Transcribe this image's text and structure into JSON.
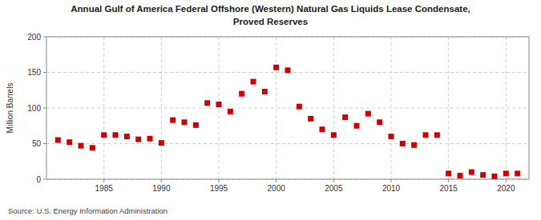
{
  "chart_data": {
    "type": "scatter",
    "title": "Annual Gulf of America Federal Offshore (Western) Natural Gas Liquids Lease Condensate,",
    "subtitle": "Proved Reserves",
    "y_label": "Million Barrels",
    "annotations": [
      "Source: U.S. Energy Information Administration"
    ],
    "x": [
      1981,
      1982,
      1983,
      1984,
      1985,
      1986,
      1987,
      1988,
      1989,
      1990,
      1991,
      1992,
      1993,
      1994,
      1995,
      1996,
      1997,
      1998,
      1999,
      2000,
      2001,
      2002,
      2003,
      2004,
      2005,
      2006,
      2007,
      2008,
      2009,
      2010,
      2011,
      2012,
      2013,
      2014,
      2015,
      2016,
      2017,
      2018,
      2019,
      2020,
      2021
    ],
    "values": [
      55,
      52,
      47,
      44,
      62,
      62,
      60,
      56,
      57,
      51,
      83,
      80,
      76,
      107,
      105,
      95,
      120,
      137,
      123,
      157,
      153,
      102,
      85,
      70,
      62,
      87,
      75,
      92,
      80,
      60,
      50,
      48,
      62,
      62,
      8,
      5,
      10,
      6,
      4,
      8,
      8
    ],
    "color": "#cc0000",
    "marker": "square",
    "xlim": [
      1980,
      2022
    ],
    "xticks": [
      1985,
      1990,
      1995,
      2000,
      2005,
      2010,
      2015,
      2020
    ],
    "ylim": [
      0,
      200
    ],
    "yticks": [
      0,
      50,
      100,
      150,
      200
    ],
    "grid": true
  }
}
